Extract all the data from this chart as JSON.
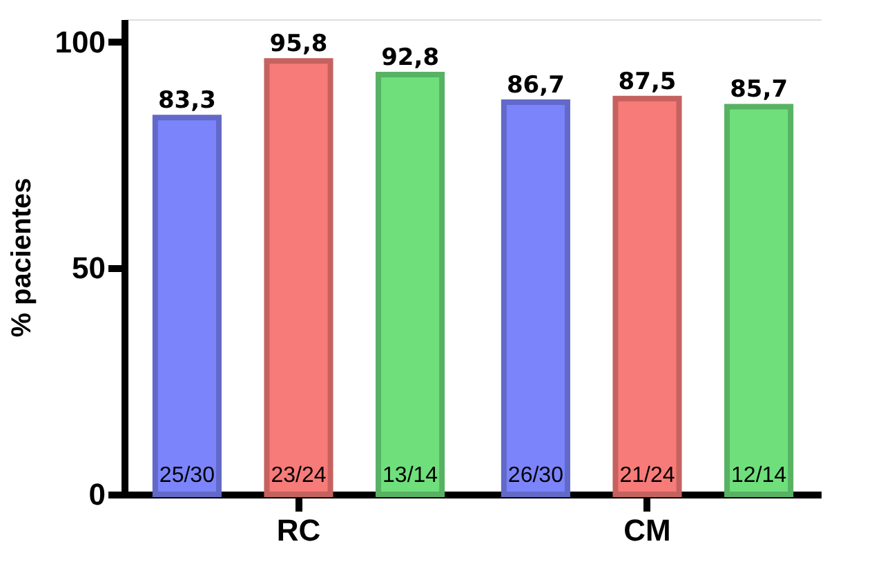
{
  "chart_data": {
    "type": "bar",
    "ylabel": "% pacientes",
    "categories": [
      "RC",
      "CM"
    ],
    "series": [
      {
        "color": "#7b84fb",
        "values": [
          83.3,
          86.7
        ],
        "value_labels": [
          "83,3",
          "86,7"
        ]
      },
      {
        "color": "#f77b78",
        "values": [
          95.8,
          87.5
        ],
        "value_labels": [
          "95,8",
          "87,5"
        ]
      },
      {
        "color": "#6fdf7c",
        "values": [
          92.8,
          85.7
        ],
        "value_labels": [
          "92,8",
          "85,7"
        ]
      }
    ],
    "ylim": [
      0,
      105
    ],
    "yticks": [
      0,
      50,
      100
    ],
    "grid": false,
    "annotations": [
      "25/30",
      "23/24",
      "13/14",
      "26/30",
      "21/24",
      "12/14"
    ]
  }
}
